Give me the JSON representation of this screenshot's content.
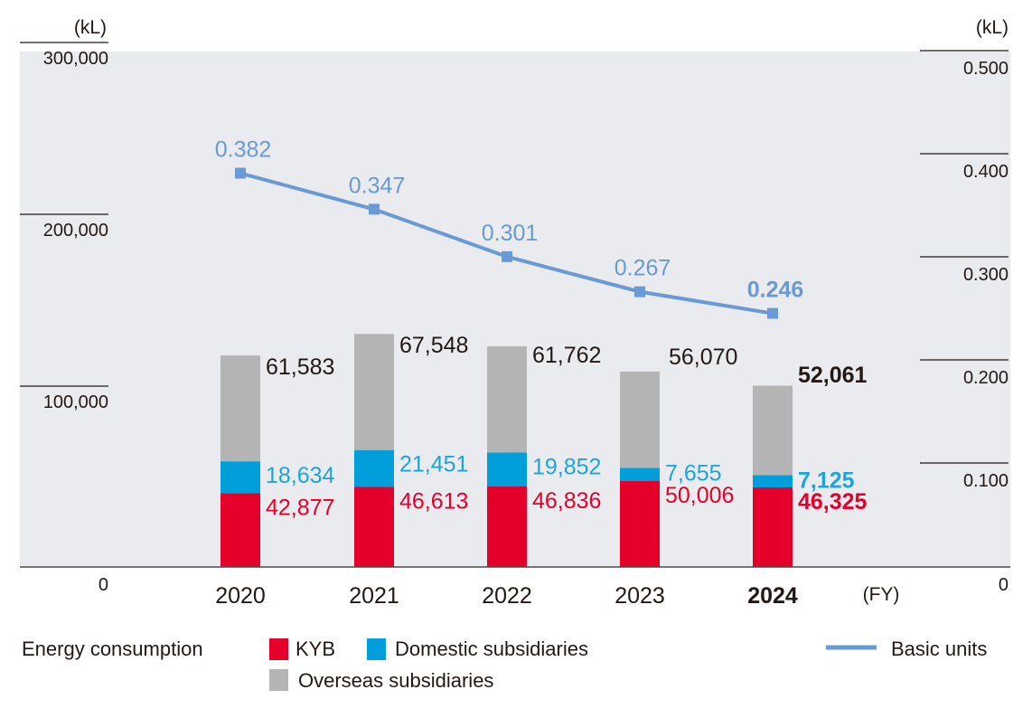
{
  "chart_data": {
    "type": "bar",
    "stacked": true,
    "categories": [
      "2020",
      "2021",
      "2022",
      "2023",
      "2024"
    ],
    "highlight_category": "2024",
    "series": [
      {
        "name": "KYB",
        "color": "#e4002b",
        "label_color": "#e4002b",
        "values": [
          42877,
          46613,
          46836,
          50006,
          46325
        ]
      },
      {
        "name": "Domestic subsidiaries",
        "color": "#009fdb",
        "label_color": "#1ea3dc",
        "values": [
          18634,
          21451,
          19852,
          7655,
          7125
        ]
      },
      {
        "name": "Overseas subsidiaries",
        "color": "#b4b4b5",
        "label_color": "#231815",
        "values": [
          61583,
          67548,
          61762,
          56070,
          52061
        ]
      }
    ],
    "line_series": {
      "name": "Basic units",
      "color": "#6a9ad6",
      "axis": "right",
      "values": [
        0.382,
        0.347,
        0.301,
        0.267,
        0.246
      ]
    },
    "data_labels": {
      "KYB": [
        "42,877",
        "46,613",
        "46,836",
        "50,006",
        "46,325"
      ],
      "Domestic subsidiaries": [
        "18,634",
        "21,451",
        "19,852",
        "7,655",
        "7,125"
      ],
      "Overseas subsidiaries": [
        "61,583",
        "67,548",
        "61,762",
        "56,070",
        "52,061"
      ],
      "Basic units": [
        "0.382",
        "0.347",
        "0.301",
        "0.267",
        "0.246"
      ]
    },
    "left_axis": {
      "unit": "(kL)",
      "ylim": [
        0,
        300000
      ],
      "ticks": [
        0,
        100000,
        200000,
        300000
      ],
      "tick_labels": [
        "0",
        "100,000",
        "200,000",
        "300,000"
      ]
    },
    "right_axis": {
      "unit": "(kL)",
      "ylim": [
        0,
        0.5
      ],
      "ticks": [
        0,
        0.1,
        0.2,
        0.3,
        0.4,
        0.5
      ],
      "tick_labels": [
        "0",
        "0.100",
        "0.200",
        "0.300",
        "0.400",
        "0.500"
      ]
    },
    "xlabel": "(FY)",
    "title": "",
    "grid": false,
    "background": "#e9ebee",
    "legend": {
      "placement": "bottom",
      "group_label": "Energy consumption",
      "items": [
        "KYB",
        "Domestic subsidiaries",
        "Overseas subsidiaries",
        "Basic units"
      ]
    }
  }
}
